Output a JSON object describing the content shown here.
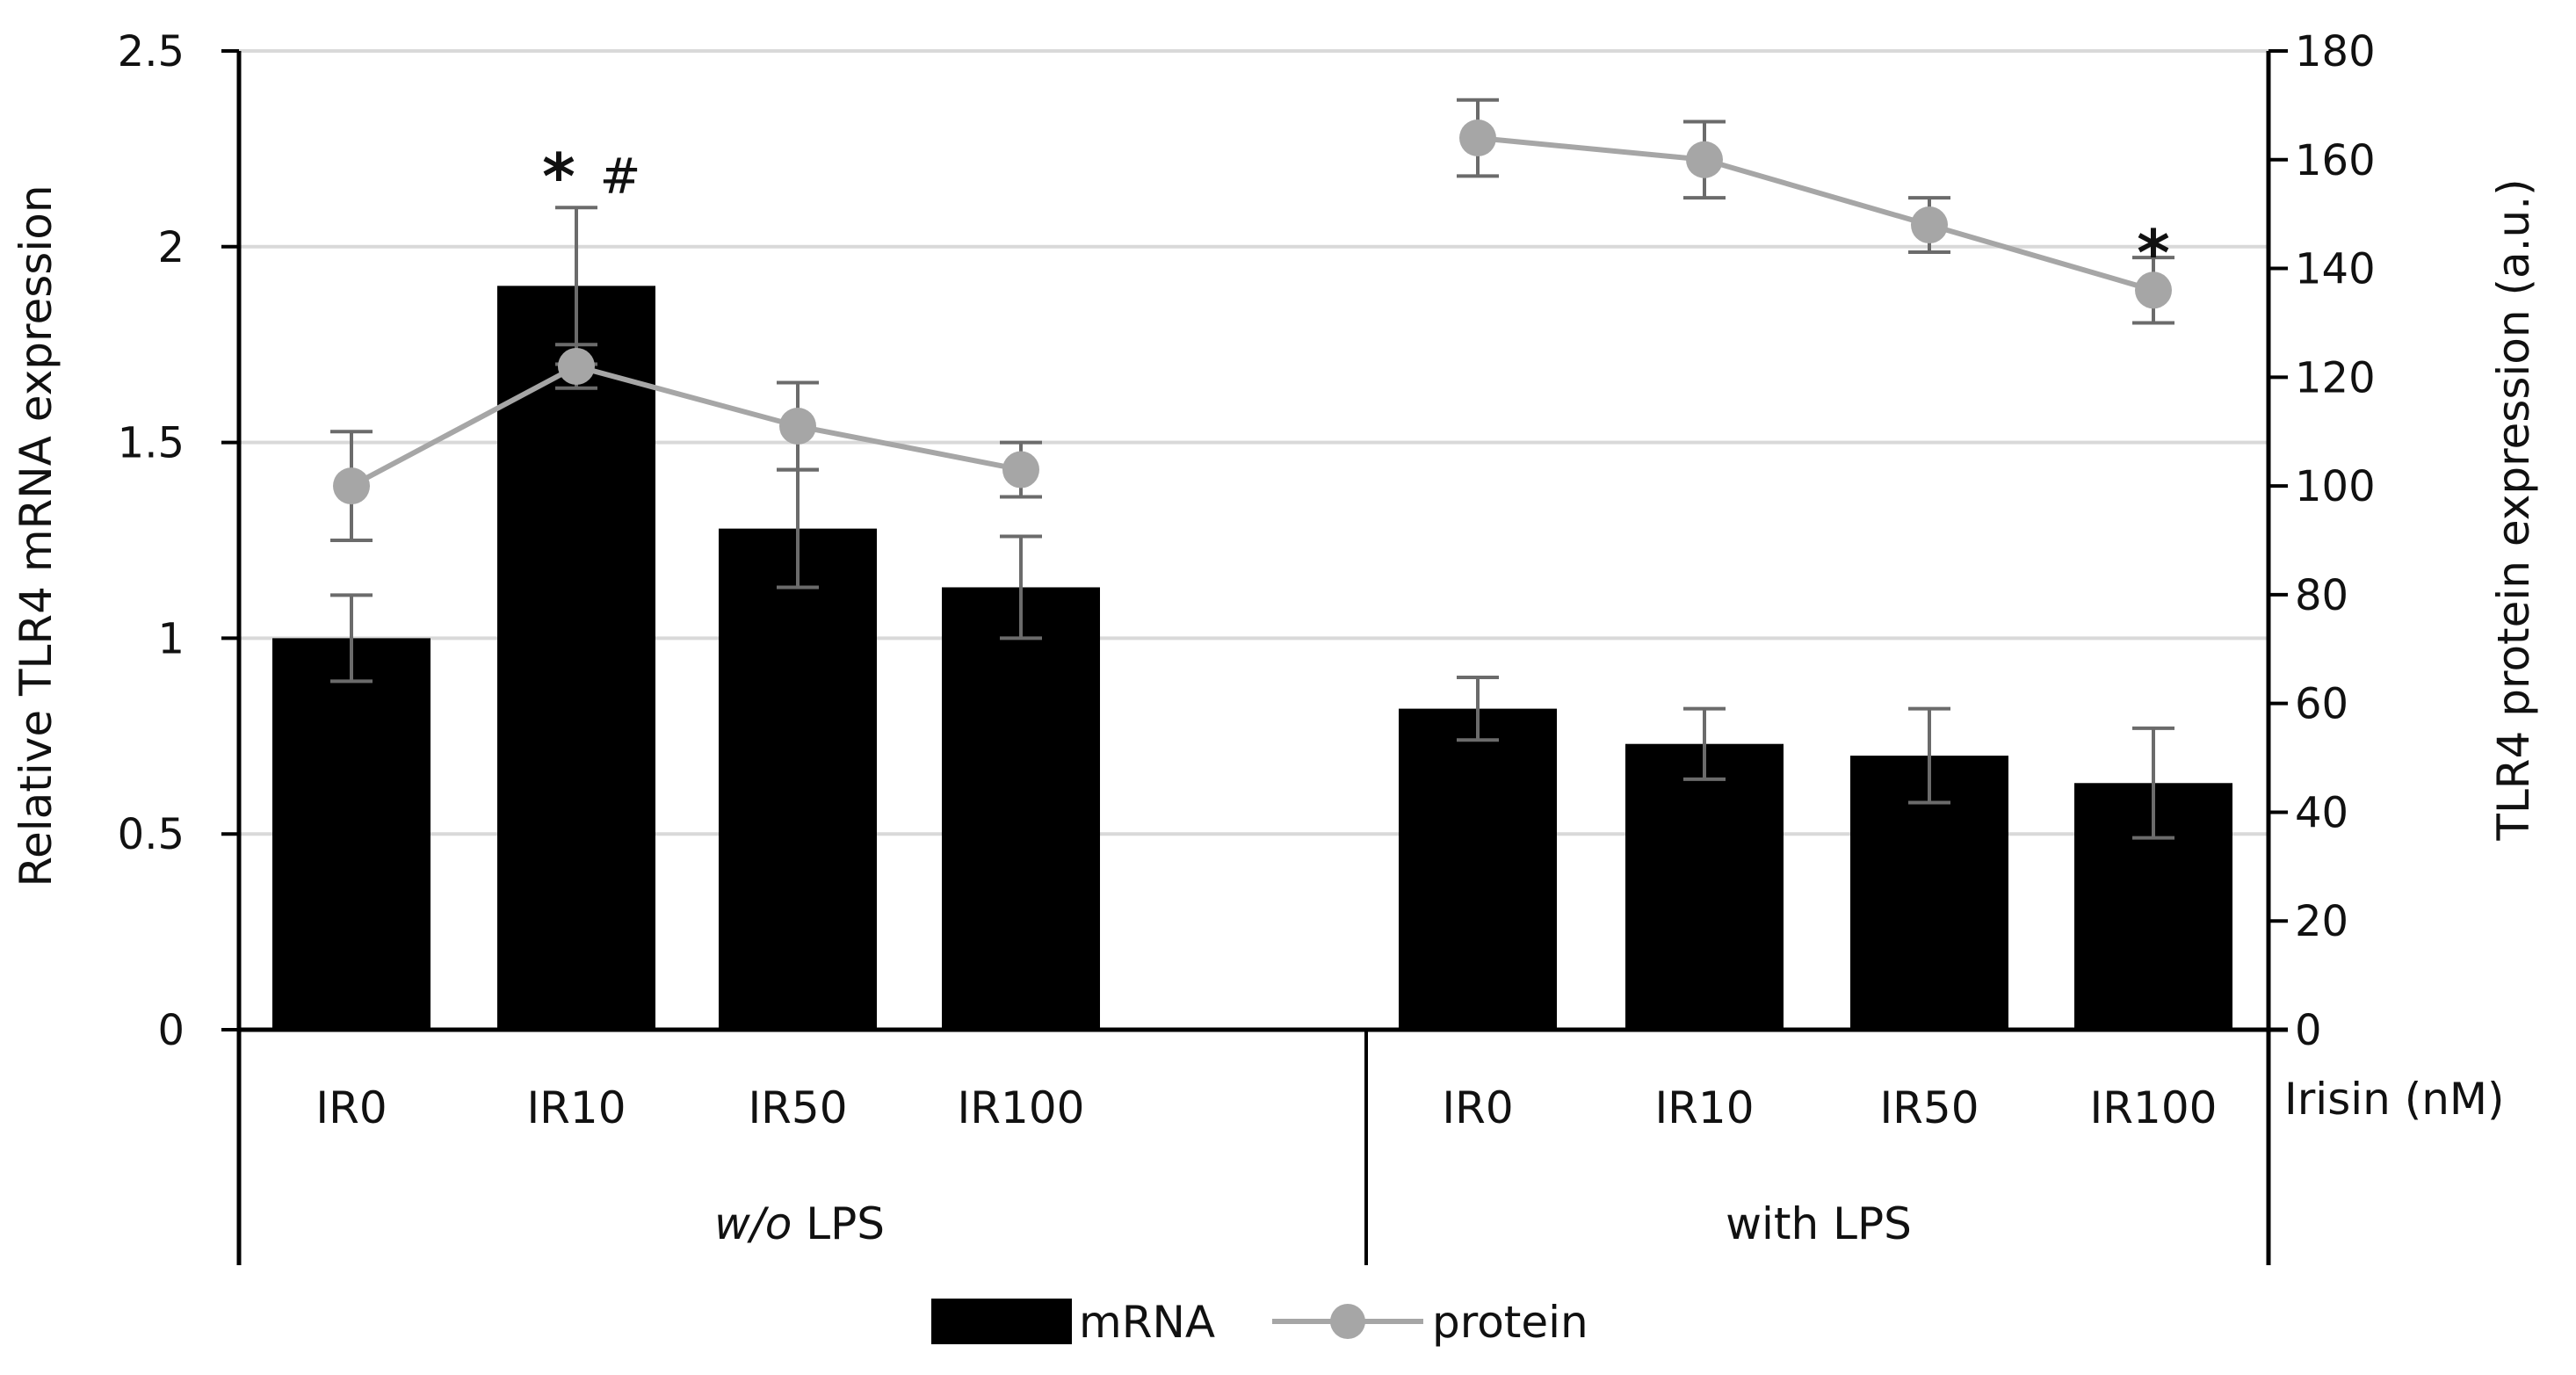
{
  "chart_data": {
    "type": "bar",
    "xlabel": "Irisin (nM)",
    "ylabel": "Relative TLR4 mRNA expression",
    "ylabel_right": "TLR4 protein expression (a.u.)",
    "ylim": [
      0,
      2.5
    ],
    "yticks": [
      "0",
      "0.5",
      "1",
      "1.5",
      "2",
      "2.5"
    ],
    "y2lim": [
      0,
      180
    ],
    "y2ticks": [
      "0",
      "20",
      "40",
      "60",
      "80",
      "100",
      "120",
      "140",
      "160",
      "180"
    ],
    "gridlines": true,
    "legend_position": "bottom",
    "groups": [
      {
        "name_prefix": "w/o",
        "name_suffix": " LPS",
        "categories": [
          "IR0",
          "IR10",
          "IR50",
          "IR100"
        ],
        "mrna": [
          1.0,
          1.9,
          1.28,
          1.13
        ],
        "mrna_err": [
          0.11,
          0.2,
          0.15,
          0.13
        ],
        "protein": [
          100,
          122,
          111,
          103
        ],
        "protein_err": [
          10,
          4,
          8,
          5
        ],
        "annotations": [
          {
            "index": 1,
            "text": "*",
            "series": "mrna"
          },
          {
            "index": 1,
            "text": "#",
            "series": "mrna"
          }
        ]
      },
      {
        "name_prefix": "",
        "name_suffix": "with LPS",
        "categories": [
          "IR0",
          "IR10",
          "IR50",
          "IR100"
        ],
        "mrna": [
          0.82,
          0.73,
          0.7,
          0.63
        ],
        "mrna_err": [
          0.08,
          0.09,
          0.12,
          0.14
        ],
        "protein": [
          164,
          160,
          148,
          136
        ],
        "protein_err": [
          7,
          7,
          5,
          6
        ],
        "annotations": [
          {
            "index": 3,
            "text": "*",
            "series": "protein"
          }
        ]
      }
    ],
    "series": [
      {
        "name": "mRNA",
        "kind": "bar",
        "color": "#000000"
      },
      {
        "name": "protein",
        "kind": "line",
        "color": "#a6a6a6"
      }
    ]
  }
}
